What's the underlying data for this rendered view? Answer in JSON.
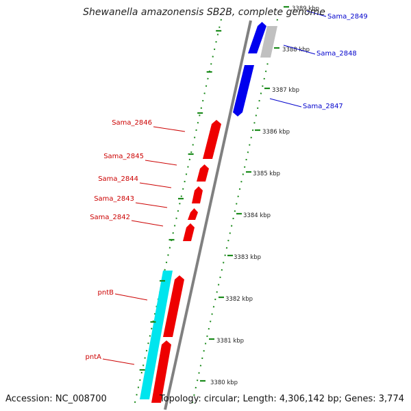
{
  "title": "Shewanella amazonensis SB2B, complete genome",
  "footer": {
    "accession": "Accession: NC_008700",
    "summary": "Topology: circular; Length: 4,306,142 bp; Genes: 3,774"
  },
  "colors": {
    "forward_gene": "#ee0000",
    "reverse_gene": "#0000ee",
    "other_gene": "#c0c0c0",
    "operon_band": "#00e5ee",
    "backbone": "#808080",
    "ticks": "#1a8a1a",
    "label_forward": "#cc0000",
    "label_reverse": "#0000cc"
  },
  "ticks": [
    "3380 kbp",
    "3381 kbp",
    "3382 kbp",
    "3383 kbp",
    "3384 kbp",
    "3385 kbp",
    "3386 kbp",
    "3387 kbp",
    "3388 kbp",
    "3389 kbp"
  ],
  "genes": [
    {
      "label": "Sama_2849",
      "strand": "reverse"
    },
    {
      "label": "Sama_2848",
      "strand": "other"
    },
    {
      "label": "Sama_2847",
      "strand": "reverse"
    },
    {
      "label": "Sama_2846",
      "strand": "forward"
    },
    {
      "label": "Sama_2845",
      "strand": "forward"
    },
    {
      "label": "Sama_2844",
      "strand": "forward"
    },
    {
      "label": "Sama_2843",
      "strand": "forward"
    },
    {
      "label": "Sama_2842",
      "strand": "forward"
    },
    {
      "label": "pntB",
      "strand": "forward"
    },
    {
      "label": "pntA",
      "strand": "forward"
    }
  ]
}
